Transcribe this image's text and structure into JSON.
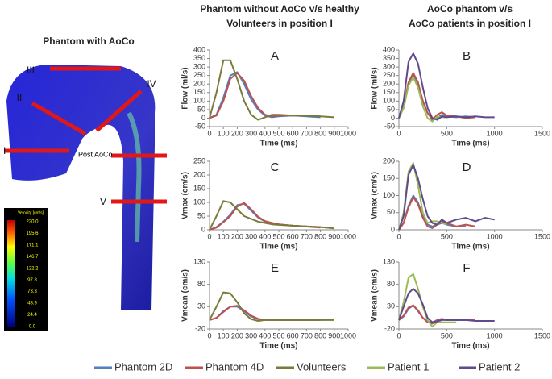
{
  "figure": {
    "column_titles": [
      [
        "Phantom without AoCo v/s healthy",
        "Volunteers in position I"
      ],
      [
        "AoCo phantom v/s",
        "AoCo patients in position I"
      ]
    ],
    "image": {
      "title": "Phantom with AoCo",
      "labels": [
        "III",
        "II",
        "IV",
        "I",
        "Post AoCo",
        "V"
      ],
      "colorbar": {
        "title": "Velocity [cm/s]",
        "ticks": [
          "220.0",
          "195.6",
          "171.1",
          "146.7",
          "122.2",
          "97.8",
          "73.3",
          "48.9",
          "24.4",
          "0.0"
        ]
      }
    }
  },
  "chart_data": [
    {
      "type": "line",
      "title": "A",
      "xlabel": "Time (ms)",
      "ylabel": "Flow (ml/s)",
      "xlim": [
        0,
        1000
      ],
      "xticks": [
        0,
        100,
        200,
        300,
        400,
        500,
        600,
        700,
        800,
        900,
        1000
      ],
      "ylim": [
        -50,
        400
      ],
      "yticks": [
        -50,
        0,
        50,
        100,
        150,
        200,
        250,
        300,
        350,
        400
      ],
      "x": [
        0,
        50,
        100,
        150,
        200,
        250,
        300,
        350,
        400,
        450,
        500,
        600,
        700,
        800,
        900
      ],
      "series": [
        {
          "name": "Phantom 2D",
          "color": "#4f81bd",
          "values": [
            0,
            20,
            120,
            250,
            270,
            200,
            110,
            50,
            15,
            5,
            10,
            15,
            10,
            5,
            null
          ]
        },
        {
          "name": "Phantom 4D",
          "color": "#c0504d",
          "values": [
            0,
            15,
            100,
            230,
            265,
            220,
            130,
            60,
            20,
            10,
            15,
            15,
            15,
            10,
            null
          ]
        },
        {
          "name": "Volunteers",
          "color": "#7a7a3a",
          "values": [
            0,
            150,
            340,
            340,
            230,
            100,
            20,
            -10,
            5,
            20,
            20,
            15,
            15,
            10,
            5
          ]
        }
      ]
    },
    {
      "type": "line",
      "title": "B",
      "xlabel": "Time (ms)",
      "ylabel": "Flow (ml/s)",
      "xlim": [
        0,
        1500
      ],
      "xticks": [
        0,
        500,
        1000,
        1500
      ],
      "ylim": [
        -50,
        400
      ],
      "yticks": [
        -50,
        0,
        50,
        100,
        150,
        200,
        250,
        300,
        350,
        400
      ],
      "x": [
        0,
        50,
        100,
        150,
        200,
        250,
        300,
        350,
        400,
        450,
        500,
        600,
        700,
        800,
        900,
        1000
      ],
      "series": [
        {
          "name": "Phantom 2D",
          "color": "#4f81bd",
          "values": [
            0,
            60,
            200,
            250,
            200,
            100,
            30,
            0,
            0,
            20,
            10,
            5,
            10,
            5,
            null,
            null
          ]
        },
        {
          "name": "Phantom 4D",
          "color": "#c0504d",
          "values": [
            0,
            70,
            210,
            265,
            210,
            100,
            30,
            -10,
            20,
            35,
            15,
            10,
            0,
            5,
            null,
            null
          ]
        },
        {
          "name": "Patient 1",
          "color": "#9bbb59",
          "values": [
            0,
            60,
            190,
            240,
            180,
            70,
            0,
            -20,
            10,
            5,
            5,
            null,
            null,
            null,
            null,
            null
          ]
        },
        {
          "name": "Patient 2",
          "color": "#604a8b",
          "values": [
            0,
            100,
            330,
            380,
            320,
            180,
            60,
            0,
            -10,
            10,
            5,
            10,
            5,
            10,
            5,
            5
          ]
        }
      ]
    },
    {
      "type": "line",
      "title": "C",
      "xlabel": "Time (ms)",
      "ylabel": "Vmax (cm/s)",
      "xlim": [
        0,
        1000
      ],
      "xticks": [
        0,
        100,
        200,
        300,
        400,
        500,
        600,
        700,
        800,
        900,
        1000
      ],
      "ylim": [
        0,
        250
      ],
      "yticks": [
        0,
        50,
        100,
        150,
        200,
        250
      ],
      "x": [
        0,
        50,
        100,
        150,
        200,
        250,
        300,
        350,
        400,
        450,
        500,
        600,
        700,
        800,
        900
      ],
      "series": [
        {
          "name": "Phantom 2D",
          "color": "#4f81bd",
          "values": [
            0,
            10,
            30,
            55,
            90,
            95,
            70,
            45,
            30,
            25,
            20,
            15,
            12,
            10,
            null
          ]
        },
        {
          "name": "Phantom 4D",
          "color": "#c0504d",
          "values": [
            0,
            8,
            28,
            50,
            85,
            98,
            75,
            48,
            32,
            25,
            20,
            15,
            12,
            8,
            null
          ]
        },
        {
          "name": "Volunteers",
          "color": "#7a7a3a",
          "values": [
            0,
            50,
            105,
            100,
            75,
            50,
            40,
            30,
            25,
            20,
            18,
            15,
            12,
            10,
            5
          ]
        }
      ]
    },
    {
      "type": "line",
      "title": "D",
      "xlabel": "Time (ms)",
      "ylabel": "Vmax (cm/s)",
      "xlim": [
        0,
        1500
      ],
      "xticks": [
        0,
        500,
        1000,
        1500
      ],
      "ylim": [
        0,
        200
      ],
      "yticks": [
        0,
        50,
        100,
        150,
        200
      ],
      "x": [
        0,
        50,
        100,
        150,
        200,
        250,
        300,
        350,
        400,
        450,
        500,
        600,
        700,
        800,
        900,
        1000
      ],
      "series": [
        {
          "name": "Phantom 2D",
          "color": "#4f81bd",
          "values": [
            0,
            20,
            70,
            100,
            80,
            40,
            15,
            10,
            15,
            20,
            15,
            10,
            10,
            null,
            null,
            null
          ]
        },
        {
          "name": "Phantom 4D",
          "color": "#c0504d",
          "values": [
            0,
            20,
            65,
            95,
            75,
            35,
            10,
            5,
            15,
            25,
            20,
            10,
            15,
            10,
            null,
            null
          ]
        },
        {
          "name": "Patient 1",
          "color": "#9bbb59",
          "values": [
            0,
            50,
            170,
            195,
            130,
            50,
            20,
            25,
            25,
            20,
            15,
            null,
            null,
            null,
            null,
            null
          ]
        },
        {
          "name": "Patient 2",
          "color": "#604a8b",
          "values": [
            0,
            40,
            160,
            190,
            150,
            90,
            40,
            20,
            15,
            30,
            20,
            30,
            35,
            25,
            35,
            30
          ]
        }
      ]
    },
    {
      "type": "line",
      "title": "E",
      "xlabel": "Time (ms)",
      "ylabel": "Vmean (cm/s)",
      "xlim": [
        0,
        1000
      ],
      "xticks": [
        0,
        100,
        200,
        300,
        400,
        500,
        600,
        700,
        800,
        900,
        1000
      ],
      "ylim": [
        -20,
        130
      ],
      "yticks": [
        -20,
        30,
        80,
        130
      ],
      "x": [
        0,
        50,
        100,
        150,
        200,
        250,
        300,
        350,
        400,
        450,
        500,
        600,
        700,
        800,
        900
      ],
      "series": [
        {
          "name": "Phantom 2D",
          "color": "#4f81bd",
          "values": [
            0,
            5,
            20,
            30,
            30,
            20,
            8,
            2,
            0,
            1,
            0,
            0,
            0,
            0,
            null
          ]
        },
        {
          "name": "Phantom 4D",
          "color": "#c0504d",
          "values": [
            0,
            5,
            18,
            30,
            32,
            22,
            10,
            3,
            0,
            0,
            0,
            0,
            0,
            0,
            null
          ]
        },
        {
          "name": "Volunteers",
          "color": "#7a7a3a",
          "values": [
            0,
            30,
            62,
            60,
            40,
            15,
            2,
            -2,
            0,
            0,
            0,
            0,
            0,
            0,
            0
          ]
        }
      ]
    },
    {
      "type": "line",
      "title": "F",
      "xlabel": "Time (ms)",
      "ylabel": "Vmean (cm/s)",
      "xlim": [
        0,
        1500
      ],
      "xticks": [
        0,
        500,
        1000,
        1500
      ],
      "ylim": [
        -20,
        130
      ],
      "yticks": [
        -20,
        30,
        80,
        130
      ],
      "x": [
        0,
        50,
        100,
        150,
        200,
        250,
        300,
        350,
        400,
        450,
        500,
        600,
        700,
        800,
        900,
        1000
      ],
      "series": [
        {
          "name": "Phantom 2D",
          "color": "#4f81bd",
          "values": [
            0,
            8,
            25,
            33,
            20,
            5,
            -3,
            -5,
            0,
            2,
            0,
            0,
            0,
            0,
            null,
            null
          ]
        },
        {
          "name": "Phantom 4D",
          "color": "#c0504d",
          "values": [
            0,
            10,
            28,
            33,
            22,
            5,
            -5,
            -8,
            0,
            3,
            0,
            0,
            0,
            0,
            null,
            null
          ]
        },
        {
          "name": "Patient 1",
          "color": "#9bbb59",
          "values": [
            0,
            40,
            95,
            103,
            70,
            30,
            0,
            -15,
            -5,
            -5,
            -5,
            -5,
            null,
            null,
            null,
            null
          ]
        },
        {
          "name": "Patient 2",
          "color": "#604a8b",
          "values": [
            0,
            30,
            60,
            70,
            60,
            35,
            5,
            -5,
            -3,
            0,
            0,
            0,
            0,
            -2,
            -2,
            -2
          ]
        }
      ]
    }
  ]
}
